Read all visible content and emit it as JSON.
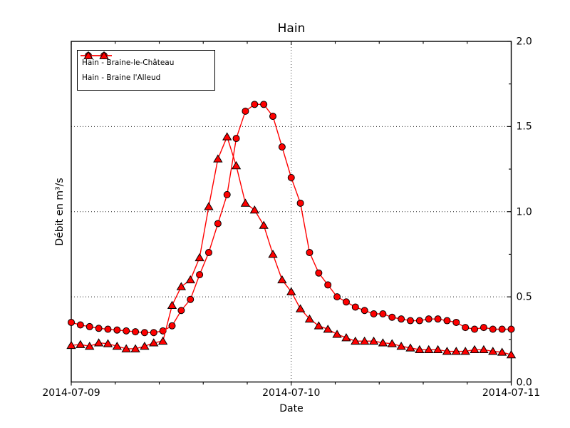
{
  "chart_data": {
    "type": "line",
    "title": "Hain",
    "xlabel": "Date",
    "ylabel": "Débit en m³/s",
    "x_unit": "hours since 2014-07-09 00:00",
    "x_range_hours": [
      0,
      48
    ],
    "ylim": [
      0.0,
      2.0
    ],
    "grid_style": "dotted",
    "x_major_ticks": [
      {
        "hour": 0,
        "label": "2014-07-09"
      },
      {
        "hour": 24,
        "label": "2014-07-10"
      },
      {
        "hour": 48,
        "label": "2014-07-11"
      }
    ],
    "y_major_ticks": [
      {
        "value": 0.0,
        "label": "0.0"
      },
      {
        "value": 0.5,
        "label": "0.5"
      },
      {
        "value": 1.0,
        "label": "1.0"
      },
      {
        "value": 1.5,
        "label": "1.5"
      },
      {
        "value": 2.0,
        "label": "2.0"
      }
    ],
    "x_minor_step_hours": 4.8,
    "y_minor_step": 0.25,
    "y_gridlines": [
      0.5,
      1.0,
      1.5
    ],
    "x_gridlines_hours": [
      24
    ],
    "legend": {
      "position": "upper-left"
    },
    "series": [
      {
        "name": "Hain - Braine-le-Château",
        "marker": "circle",
        "line_color": "#ff0000",
        "marker_face": "#ff0000",
        "marker_edge": "#000000",
        "values": [
          0.35,
          0.335,
          0.325,
          0.315,
          0.31,
          0.305,
          0.3,
          0.295,
          0.29,
          0.29,
          0.3,
          0.33,
          0.42,
          0.485,
          0.63,
          0.76,
          0.93,
          1.1,
          1.43,
          1.59,
          1.63,
          1.63,
          1.56,
          1.38,
          1.2,
          1.05,
          0.76,
          0.64,
          0.57,
          0.5,
          0.47,
          0.44,
          0.42,
          0.4,
          0.4,
          0.38,
          0.37,
          0.36,
          0.36,
          0.37,
          0.37,
          0.36,
          0.35,
          0.32,
          0.31,
          0.32,
          0.31,
          0.31,
          0.31
        ]
      },
      {
        "name": "Hain - Braine l'Alleud",
        "marker": "triangle-up",
        "line_color": "#ff0000",
        "marker_face": "#ff0000",
        "marker_edge": "#000000",
        "values": [
          0.215,
          0.22,
          0.21,
          0.23,
          0.225,
          0.21,
          0.195,
          0.195,
          0.21,
          0.23,
          0.24,
          0.45,
          0.56,
          0.6,
          0.73,
          1.03,
          1.31,
          1.44,
          1.27,
          1.05,
          1.01,
          0.92,
          0.75,
          0.6,
          0.53,
          0.43,
          0.37,
          0.33,
          0.31,
          0.28,
          0.26,
          0.24,
          0.24,
          0.24,
          0.23,
          0.225,
          0.21,
          0.2,
          0.19,
          0.19,
          0.19,
          0.18,
          0.18,
          0.18,
          0.19,
          0.19,
          0.18,
          0.175,
          0.16
        ]
      }
    ]
  }
}
